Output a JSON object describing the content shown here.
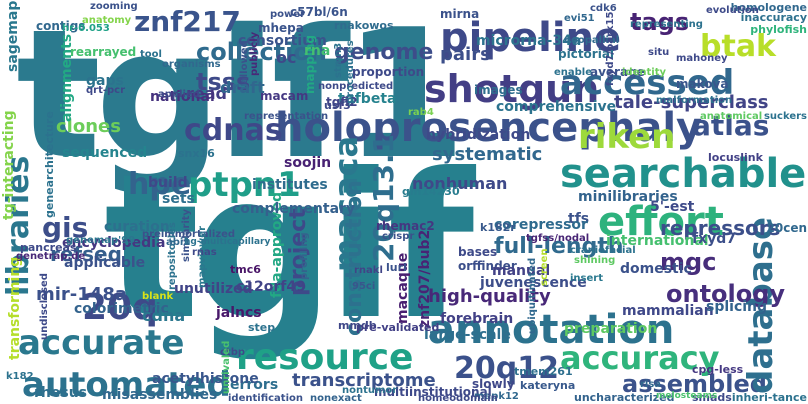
{
  "words": [
    {
      "text": "tgif1",
      "color": "#2b7a8e"
    },
    {
      "text": "tgif",
      "color": "#26808e"
    },
    {
      "text": "holoprosencephaly",
      "color": "#3b528b"
    },
    {
      "text": "pipeline",
      "color": "#3e4989"
    },
    {
      "text": "shotgun",
      "color": "#433e85"
    },
    {
      "text": "accessed",
      "color": "#31688e"
    },
    {
      "text": "annotation",
      "color": "#2c728e"
    },
    {
      "text": "cdnas",
      "color": "#3f4889"
    },
    {
      "text": "searchable",
      "color": "#21918c"
    },
    {
      "text": "automated",
      "color": "#2c728e"
    },
    {
      "text": "accurate",
      "color": "#2a788e"
    },
    {
      "text": "resource",
      "color": "#1fa187"
    },
    {
      "text": "effort",
      "color": "#2db27d"
    },
    {
      "text": "accuracy",
      "color": "#2fb47c"
    },
    {
      "text": "assembled",
      "color": "#3b528b"
    },
    {
      "text": "20q",
      "color": "#3e4a89"
    },
    {
      "text": "20q12",
      "color": "#3b518b"
    },
    {
      "text": "ptpn1",
      "color": "#1f9e89"
    },
    {
      "text": "riken",
      "color": "#9dd93b"
    },
    {
      "text": "btak",
      "color": "#b8de29"
    },
    {
      "text": "hpe",
      "color": "#33638d"
    },
    {
      "text": "znf217",
      "color": "#3a548c"
    },
    {
      "text": "atlas",
      "color": "#3b528b"
    },
    {
      "text": "gis",
      "color": "#3d4e8a"
    },
    {
      "text": "database",
      "color": "#2e6f8e"
    },
    {
      "text": "macaca",
      "color": "#2a788e"
    },
    {
      "text": "20q13.1",
      "color": "#2e6e8e"
    },
    {
      "text": "construction",
      "color": "#2d718e"
    },
    {
      "text": "libraries",
      "color": "#2a778e"
    },
    {
      "text": "project",
      "color": "#3e4989"
    },
    {
      "text": "tags",
      "color": "#482374"
    },
    {
      "text": "genome",
      "color": "#3d4d8a"
    },
    {
      "text": "mgc",
      "color": "#472d7b"
    },
    {
      "text": "tsss",
      "color": "#3e4a89"
    },
    {
      "text": "collection",
      "color": "#2f6b8e"
    },
    {
      "text": "pairs",
      "color": "#3c4f8a"
    },
    {
      "text": "clones",
      "color": "#6ccd5a"
    },
    {
      "text": "full-length",
      "color": "#306a8e"
    },
    {
      "text": "ontology",
      "color": "#472f7d"
    },
    {
      "text": "mir-148a",
      "color": "#3b518b"
    },
    {
      "text": "systematic",
      "color": "#31688e"
    },
    {
      "text": "high-quality",
      "color": "#482878"
    },
    {
      "text": "refseq",
      "color": "#355f8d"
    },
    {
      "text": "transcriptome",
      "color": "#3b528b"
    },
    {
      "text": "repressors",
      "color": "#3c4f8a"
    },
    {
      "text": "tale-superclass",
      "color": "#414487"
    },
    {
      "text": "comprehensive",
      "color": "#2c738e"
    },
    {
      "text": "hybridization",
      "color": "#3e4a89"
    },
    {
      "text": "forebrain",
      "color": "#424186"
    },
    {
      "text": "nonhuman",
      "color": "#3e4989"
    },
    {
      "text": "large-scale",
      "color": "#2e6f8e"
    },
    {
      "text": "read",
      "color": "#433d84"
    },
    {
      "text": "draft",
      "color": "#31678e"
    },
    {
      "text": "microrna-34a",
      "color": "#2c738e"
    },
    {
      "text": "consortium",
      "color": "#3a548c"
    },
    {
      "text": "tgfbeta",
      "color": "#26828e"
    },
    {
      "text": "images",
      "color": "#2e6e8e"
    },
    {
      "text": "orffinder",
      "color": "#3c4f8a"
    },
    {
      "text": "gaps",
      "color": "#2c738e"
    },
    {
      "text": "national",
      "color": "#46327e"
    },
    {
      "text": "alignments",
      "color": "#22a884"
    },
    {
      "text": "sequenced",
      "color": "#25848e"
    },
    {
      "text": "curation",
      "color": "#2d708e"
    },
    {
      "text": "encyclopedia",
      "color": "#453781"
    },
    {
      "text": "applicable",
      "color": "#3b528b"
    },
    {
      "text": "colorimetric",
      "color": "#33638d"
    },
    {
      "text": "cdna",
      "color": "#2a778e"
    },
    {
      "text": "unutilized",
      "color": "#414487"
    },
    {
      "text": "fda-approved",
      "color": "#22a884"
    },
    {
      "text": "c12orf49",
      "color": "#414487"
    },
    {
      "text": "jalncs",
      "color": "#48186a"
    },
    {
      "text": "mmdb",
      "color": "#3f4788"
    },
    {
      "text": "errors",
      "color": "#2e6e8e"
    },
    {
      "text": "misassemblies",
      "color": "#31688e"
    },
    {
      "text": "rhesus",
      "color": "#2e6f8e"
    },
    {
      "text": "acetylhistone",
      "color": "#39568c"
    },
    {
      "text": "institutes",
      "color": "#2f6c8e"
    },
    {
      "text": "complementary",
      "color": "#35608d"
    },
    {
      "text": "sets",
      "color": "#2e6f8e"
    },
    {
      "text": "build",
      "color": "#3f4889"
    },
    {
      "text": "soojin",
      "color": "#482173"
    },
    {
      "text": "manual",
      "color": "#424186"
    },
    {
      "text": "domestic",
      "color": "#3b528b"
    },
    {
      "text": "mammalian",
      "color": "#3f4889"
    },
    {
      "text": "juvenescence",
      "color": "#3d4e8a"
    },
    {
      "text": "splicing",
      "color": "#33638d"
    },
    {
      "text": "preparation",
      "color": "#5ec962"
    },
    {
      "text": "5'-est",
      "color": "#3e4a89"
    },
    {
      "text": "tfs",
      "color": "#3b528b"
    },
    {
      "text": "international",
      "color": "#46c06f"
    },
    {
      "text": "fxyd7",
      "color": "#3c4f8a"
    },
    {
      "text": "corepressor",
      "color": "#2f6b8e"
    },
    {
      "text": "minilibraries",
      "color": "#33638d"
    },
    {
      "text": "bases",
      "color": "#3e4a89"
    },
    {
      "text": "slowly",
      "color": "#3f4889"
    },
    {
      "text": "macaque",
      "color": "#481f70"
    },
    {
      "text": "znf207/bub2",
      "color": "#482475"
    },
    {
      "text": "rhemac2",
      "color": "#453781"
    },
    {
      "text": "k182r",
      "color": "#38598c"
    },
    {
      "text": "mhepa",
      "color": "#3a548c"
    },
    {
      "text": "macam",
      "color": "#453882"
    },
    {
      "text": "proportion",
      "color": "#3e4a89"
    },
    {
      "text": "mapping",
      "color": "#22a884"
    },
    {
      "text": "oc",
      "color": "#3e4a89"
    },
    {
      "text": "c57bl/6n",
      "color": "#3a548c"
    },
    {
      "text": "rnakowos",
      "color": "#2f6c8e"
    },
    {
      "text": "average",
      "color": "#3b528b"
    },
    {
      "text": "makova",
      "color": "#39568c"
    },
    {
      "text": "mirna",
      "color": "#3b528b"
    },
    {
      "text": "pictorial",
      "color": "#2c728e"
    },
    {
      "text": "rna",
      "color": "#44bf70"
    },
    {
      "text": "tgfi2",
      "color": "#414487"
    },
    {
      "text": "usf3",
      "color": "#3e4989"
    },
    {
      "text": "rab4",
      "color": "#7ad151"
    },
    {
      "text": "gm14230",
      "color": "#287c8e"
    },
    {
      "text": "snx16",
      "color": "#2c728e"
    },
    {
      "text": "contigs",
      "color": "#31688e"
    },
    {
      "text": "rearrayed",
      "color": "#46c06f"
    },
    {
      "text": "sagemap",
      "color": "#2a788e"
    },
    {
      "text": "tg-interacting",
      "color": "#84d44b"
    },
    {
      "text": "transforming",
      "color": "#b5de2b"
    },
    {
      "text": "genearchitecture",
      "color": "#2c728e"
    },
    {
      "text": "pancreas",
      "color": "#3e4989"
    },
    {
      "text": "genemap'99",
      "color": "#2b758e"
    },
    {
      "text": "genetrap.de",
      "color": "#482878"
    },
    {
      "text": "preimmortalized",
      "color": "#3b528b"
    },
    {
      "text": "tmc6",
      "color": "#481467"
    },
    {
      "text": "blank",
      "color": "#d8e219"
    },
    {
      "text": "step",
      "color": "#2c728e"
    },
    {
      "text": "pre-validated",
      "color": "#424086"
    },
    {
      "text": "multiinstitutional",
      "color": "#3e4989"
    },
    {
      "text": "tmem261",
      "color": "#2e6f8e"
    },
    {
      "text": "mapk12",
      "color": "#31688e"
    },
    {
      "text": "identification",
      "color": "#3b528b"
    },
    {
      "text": "nonexact",
      "color": "#33638d"
    },
    {
      "text": "nontumor",
      "color": "#2c728e"
    },
    {
      "text": "homeodomain",
      "color": "#3e4a89"
    },
    {
      "text": "kateryna",
      "color": "#38598c"
    },
    {
      "text": "uncharacterized",
      "color": "#33638d"
    },
    {
      "text": "smads",
      "color": "#3e4a89"
    },
    {
      "text": "inheri-tance",
      "color": "#2c728e"
    },
    {
      "text": "melosteams",
      "color": "#4ac16d"
    },
    {
      "text": "cpg-less",
      "color": "#453882"
    },
    {
      "text": "20cen",
      "color": "#31688e"
    },
    {
      "text": "locuslink",
      "color": "#424186"
    },
    {
      "text": "homologene",
      "color": "#31688e"
    },
    {
      "text": "inaccuracy",
      "color": "#2d718e"
    },
    {
      "text": "phylofish",
      "color": "#2fb47c"
    },
    {
      "text": "suckers",
      "color": "#2c728e"
    },
    {
      "text": "anatomical",
      "color": "#5ec962"
    },
    {
      "text": "evolution",
      "color": "#3e4a89"
    },
    {
      "text": "malformation",
      "color": "#2d708e"
    },
    {
      "text": "cdk6",
      "color": "#3b528b"
    },
    {
      "text": "evi51",
      "color": "#31688e"
    },
    {
      "text": "mahoney",
      "color": "#3e4989"
    },
    {
      "text": "representing",
      "color": "#2c728e"
    },
    {
      "text": "neopallial",
      "color": "#2f6b8e"
    },
    {
      "text": "identity",
      "color": "#6ccd5a"
    },
    {
      "text": "enable",
      "color": "#2c728e"
    },
    {
      "text": "fxyd7/park15",
      "color": "#3e4989"
    },
    {
      "text": "crispr",
      "color": "#3b528b"
    },
    {
      "text": "insert",
      "color": "#2a788e"
    },
    {
      "text": "shining",
      "color": "#5ec962"
    },
    {
      "text": "craniofacial",
      "color": "#2c728e"
    },
    {
      "text": "tgfss/nodal",
      "color": "#482575"
    },
    {
      "text": "lurl",
      "color": "#3b528b"
    },
    {
      "text": "rnakl",
      "color": "#414487"
    },
    {
      "text": "95ci",
      "color": "#39568c"
    },
    {
      "text": "screen",
      "color": "#b5de2b"
    },
    {
      "text": "ubiquitinated",
      "color": "#31688e"
    },
    {
      "text": "ctbp",
      "color": "#3e4989"
    },
    {
      "text": "profiling",
      "color": "#33638d"
    },
    {
      "text": "mapviewer",
      "color": "#2a788e"
    },
    {
      "text": "similarity",
      "color": "#3b528b"
    },
    {
      "text": "repositories",
      "color": "#2c728e"
    },
    {
      "text": "rnas",
      "color": "#3e4989"
    },
    {
      "text": "abi1",
      "color": "#31688e"
    },
    {
      "text": "k182",
      "color": "#2c728e"
    },
    {
      "text": "undisclosed",
      "color": "#3e4a89"
    },
    {
      "text": "unrivaled",
      "color": "#4ac16d"
    },
    {
      "text": "hr-0.053",
      "color": "#1fa187"
    },
    {
      "text": "zooming",
      "color": "#3b528b"
    },
    {
      "text": "anatomy",
      "color": "#84d44b"
    },
    {
      "text": "qrt-pcr",
      "color": "#3e4989"
    },
    {
      "text": "tool",
      "color": "#2c728e"
    },
    {
      "text": "organisms",
      "color": "#31688e"
    },
    {
      "text": "applied",
      "color": "#3e4a89"
    },
    {
      "text": "allowed",
      "color": "#3b528b"
    },
    {
      "text": "publicly",
      "color": "#482878"
    },
    {
      "text": "power",
      "color": "#3b528b"
    },
    {
      "text": "stmn3",
      "color": "#2c728e"
    },
    {
      "text": "nonpredicted",
      "color": "#3e4a89"
    },
    {
      "text": "procedures",
      "color": "#2c728e"
    },
    {
      "text": "representation",
      "color": "#3b528b"
    },
    {
      "text": "risa",
      "color": "#31688e"
    },
    {
      "text": "situ",
      "color": "#3e4989"
    },
    {
      "text": "hg-multicapillary",
      "color": "#2c728e"
    }
  ]
}
